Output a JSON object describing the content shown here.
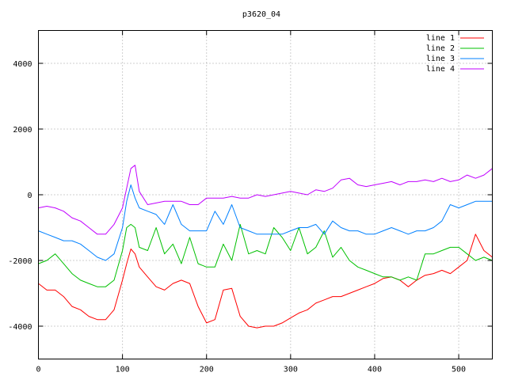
{
  "chart_data": {
    "type": "line",
    "title": "p3620_04",
    "xlabel": "",
    "ylabel": "",
    "xlim": [
      0,
      540
    ],
    "ylim": [
      -5000,
      5000
    ],
    "xticks": [
      "0",
      "100",
      "200",
      "300",
      "400",
      "500"
    ],
    "yticks": [
      "-4000",
      "-2000",
      "0",
      "2000",
      "4000"
    ],
    "grid": true,
    "legend_position": "top-right",
    "x": [
      0,
      10,
      20,
      30,
      40,
      50,
      60,
      70,
      80,
      90,
      100,
      105,
      110,
      115,
      120,
      130,
      140,
      150,
      160,
      170,
      180,
      190,
      200,
      210,
      220,
      230,
      240,
      250,
      260,
      270,
      280,
      290,
      300,
      310,
      320,
      330,
      340,
      350,
      360,
      370,
      380,
      390,
      400,
      410,
      420,
      430,
      440,
      450,
      460,
      470,
      480,
      490,
      500,
      510,
      520,
      530,
      540
    ],
    "series": [
      {
        "name": "line 1",
        "color": "#ff0000",
        "values": [
          -2700,
          -2900,
          -2900,
          -3100,
          -3400,
          -3500,
          -3700,
          -3800,
          -3800,
          -3500,
          -2600,
          -2100,
          -1650,
          -1800,
          -2200,
          -2500,
          -2800,
          -2900,
          -2700,
          -2600,
          -2700,
          -3400,
          -3900,
          -3800,
          -2900,
          -2850,
          -3700,
          -4000,
          -4050,
          -4000,
          -4000,
          -3900,
          -3750,
          -3600,
          -3500,
          -3300,
          -3200,
          -3100,
          -3100,
          -3000,
          -2900,
          -2800,
          -2700,
          -2550,
          -2500,
          -2600,
          -2800,
          -2600,
          -2450,
          -2400,
          -2300,
          -2400,
          -2200,
          -2000,
          -1200,
          -1700,
          -1900
        ]
      },
      {
        "name": "line 2",
        "color": "#00c000",
        "values": [
          -2100,
          -2000,
          -1800,
          -2100,
          -2400,
          -2600,
          -2700,
          -2800,
          -2800,
          -2600,
          -1700,
          -1000,
          -900,
          -1000,
          -1600,
          -1700,
          -1000,
          -1800,
          -1500,
          -2100,
          -1300,
          -2100,
          -2200,
          -2200,
          -1500,
          -2000,
          -900,
          -1800,
          -1700,
          -1800,
          -1000,
          -1300,
          -1700,
          -1000,
          -1800,
          -1600,
          -1100,
          -1900,
          -1600,
          -2000,
          -2200,
          -2300,
          -2400,
          -2500,
          -2500,
          -2600,
          -2500,
          -2600,
          -1800,
          -1800,
          -1700,
          -1600,
          -1600,
          -1800,
          -2000,
          -1900,
          -2000
        ]
      },
      {
        "name": "line 3",
        "color": "#0080ff",
        "values": [
          -1100,
          -1200,
          -1300,
          -1400,
          -1400,
          -1500,
          -1700,
          -1900,
          -2000,
          -1800,
          -1000,
          -200,
          300,
          -100,
          -400,
          -500,
          -600,
          -900,
          -300,
          -900,
          -1100,
          -1100,
          -1100,
          -500,
          -900,
          -300,
          -1000,
          -1100,
          -1200,
          -1200,
          -1200,
          -1200,
          -1100,
          -1000,
          -1000,
          -900,
          -1200,
          -800,
          -1000,
          -1100,
          -1100,
          -1200,
          -1200,
          -1100,
          -1000,
          -1100,
          -1200,
          -1100,
          -1100,
          -1000,
          -800,
          -300,
          -400,
          -300,
          -200,
          -200,
          -200
        ]
      },
      {
        "name": "line 4",
        "color": "#c000ff",
        "values": [
          -400,
          -350,
          -400,
          -500,
          -700,
          -800,
          -1000,
          -1200,
          -1200,
          -900,
          -400,
          200,
          800,
          900,
          100,
          -300,
          -250,
          -200,
          -200,
          -200,
          -300,
          -300,
          -100,
          -100,
          -100,
          -50,
          -100,
          -100,
          0,
          -50,
          0,
          50,
          100,
          50,
          0,
          150,
          100,
          200,
          450,
          500,
          300,
          250,
          300,
          350,
          400,
          300,
          400,
          400,
          450,
          400,
          500,
          400,
          450,
          600,
          500,
          600,
          800
        ]
      }
    ]
  }
}
